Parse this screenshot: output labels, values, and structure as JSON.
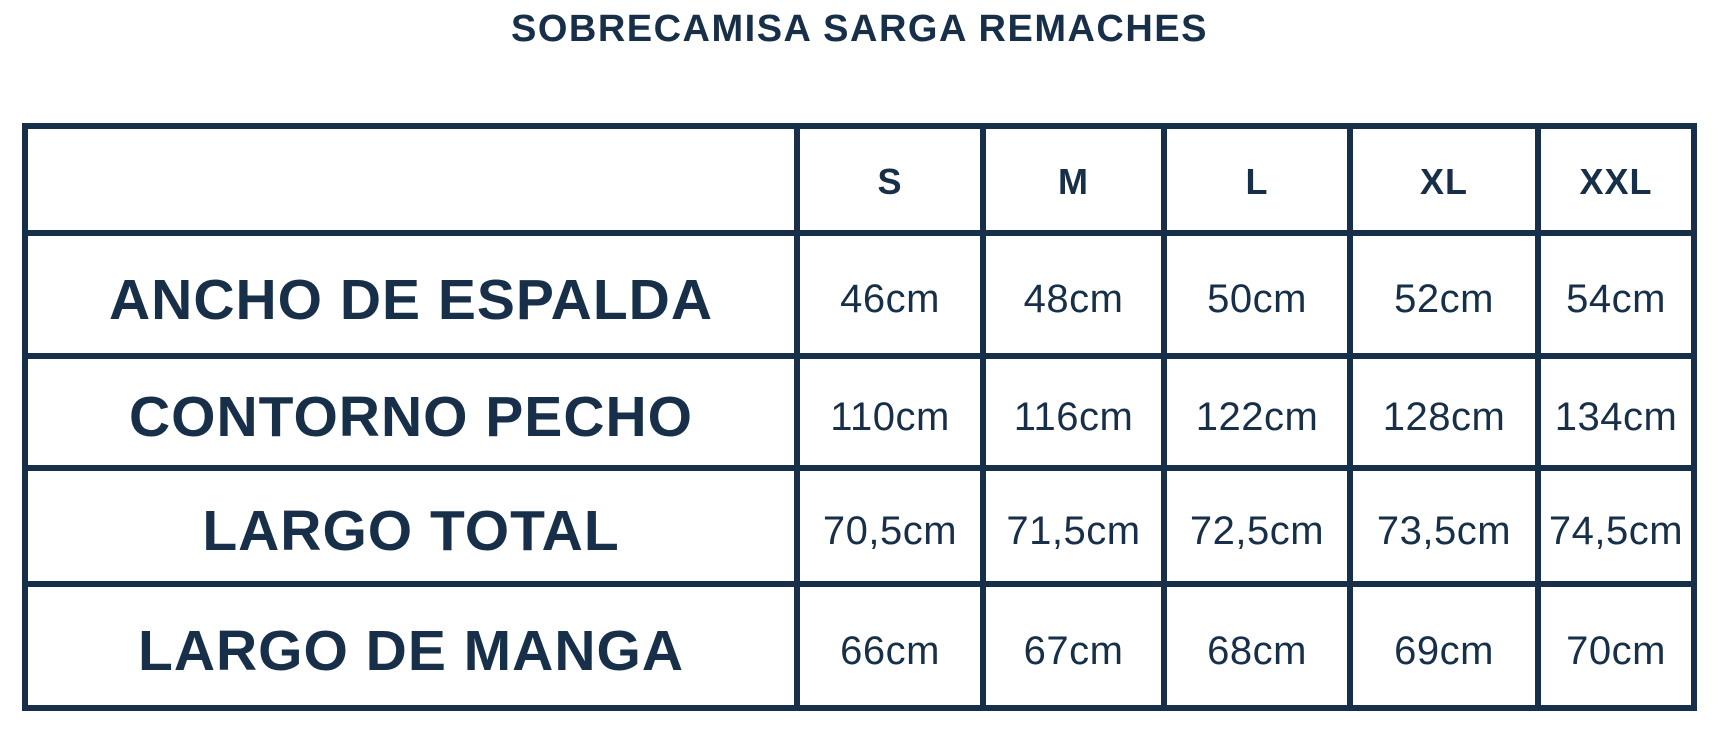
{
  "title": "SOBRECAMISA SARGA REMACHES",
  "colors": {
    "ink": "#172f48",
    "background": "#ffffff"
  },
  "unit": "cm",
  "chart_data": {
    "type": "table",
    "title": "SOBRECAMISA SARGA REMACHES",
    "columns": [
      "",
      "S",
      "M",
      "L",
      "XL",
      "XXL"
    ],
    "rows": [
      {
        "label": "ANCHO DE ESPALDA",
        "values": [
          "46cm",
          "48cm",
          "50cm",
          "52cm",
          "54cm"
        ],
        "values_cm": [
          46,
          48,
          50,
          52,
          54
        ]
      },
      {
        "label": "CONTORNO PECHO",
        "values": [
          "110cm",
          "116cm",
          "122cm",
          "128cm",
          "134cm"
        ],
        "values_cm": [
          110,
          116,
          122,
          128,
          134
        ]
      },
      {
        "label": "LARGO TOTAL",
        "values": [
          "70,5cm",
          "71,5cm",
          "72,5cm",
          "73,5cm",
          "74,5cm"
        ],
        "values_cm": [
          70.5,
          71.5,
          72.5,
          73.5,
          74.5
        ]
      },
      {
        "label": "LARGO DE MANGA",
        "values": [
          "66cm",
          "67cm",
          "68cm",
          "69cm",
          "70cm"
        ],
        "values_cm": [
          66,
          67,
          68,
          69,
          70
        ]
      }
    ],
    "layout": {
      "grid": "on",
      "header_row": true,
      "label_column": true
    }
  }
}
